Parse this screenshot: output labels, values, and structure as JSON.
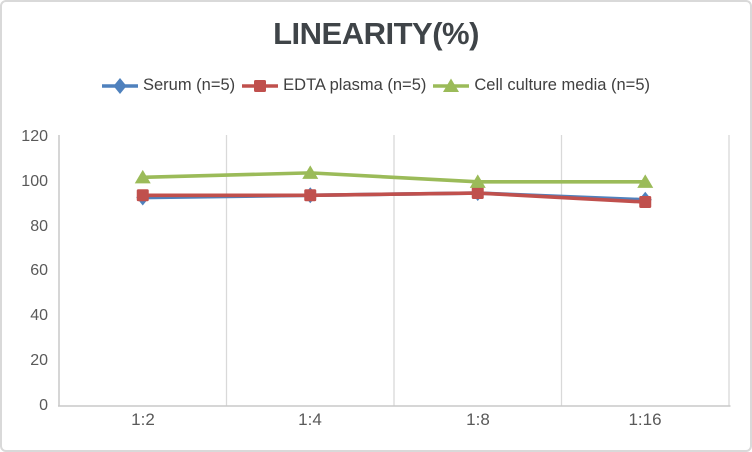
{
  "chart_data": {
    "type": "line",
    "title": "LINEARITY(%)",
    "categories": [
      "1:2",
      "1:4",
      "1:8",
      "1:16"
    ],
    "yticks": [
      "120",
      "100",
      "80",
      "60",
      "40",
      "20",
      "0"
    ],
    "ylim": [
      0,
      120
    ],
    "grid": "vertical-category-boundaries",
    "legend_position": "top",
    "series": [
      {
        "name": "Serum (n=5)",
        "marker": "diamond",
        "color": "#4F81BD",
        "values": [
          93,
          94,
          95,
          92
        ]
      },
      {
        "name": "EDTA plasma (n=5)",
        "marker": "square",
        "color": "#C0504D",
        "values": [
          94,
          94,
          95,
          91
        ]
      },
      {
        "name": "Cell culture media (n=5)",
        "marker": "triangle",
        "color": "#9BBB59",
        "values": [
          102,
          104,
          100,
          100
        ]
      }
    ]
  },
  "colors": {
    "background": "#FFFFFF",
    "border": "#D9D9D9",
    "gridline": "#D9D9D9",
    "axis": "#C9C9C9",
    "title_text": "#3F4448",
    "tick_text": "#595959",
    "legend_text": "#404040"
  }
}
